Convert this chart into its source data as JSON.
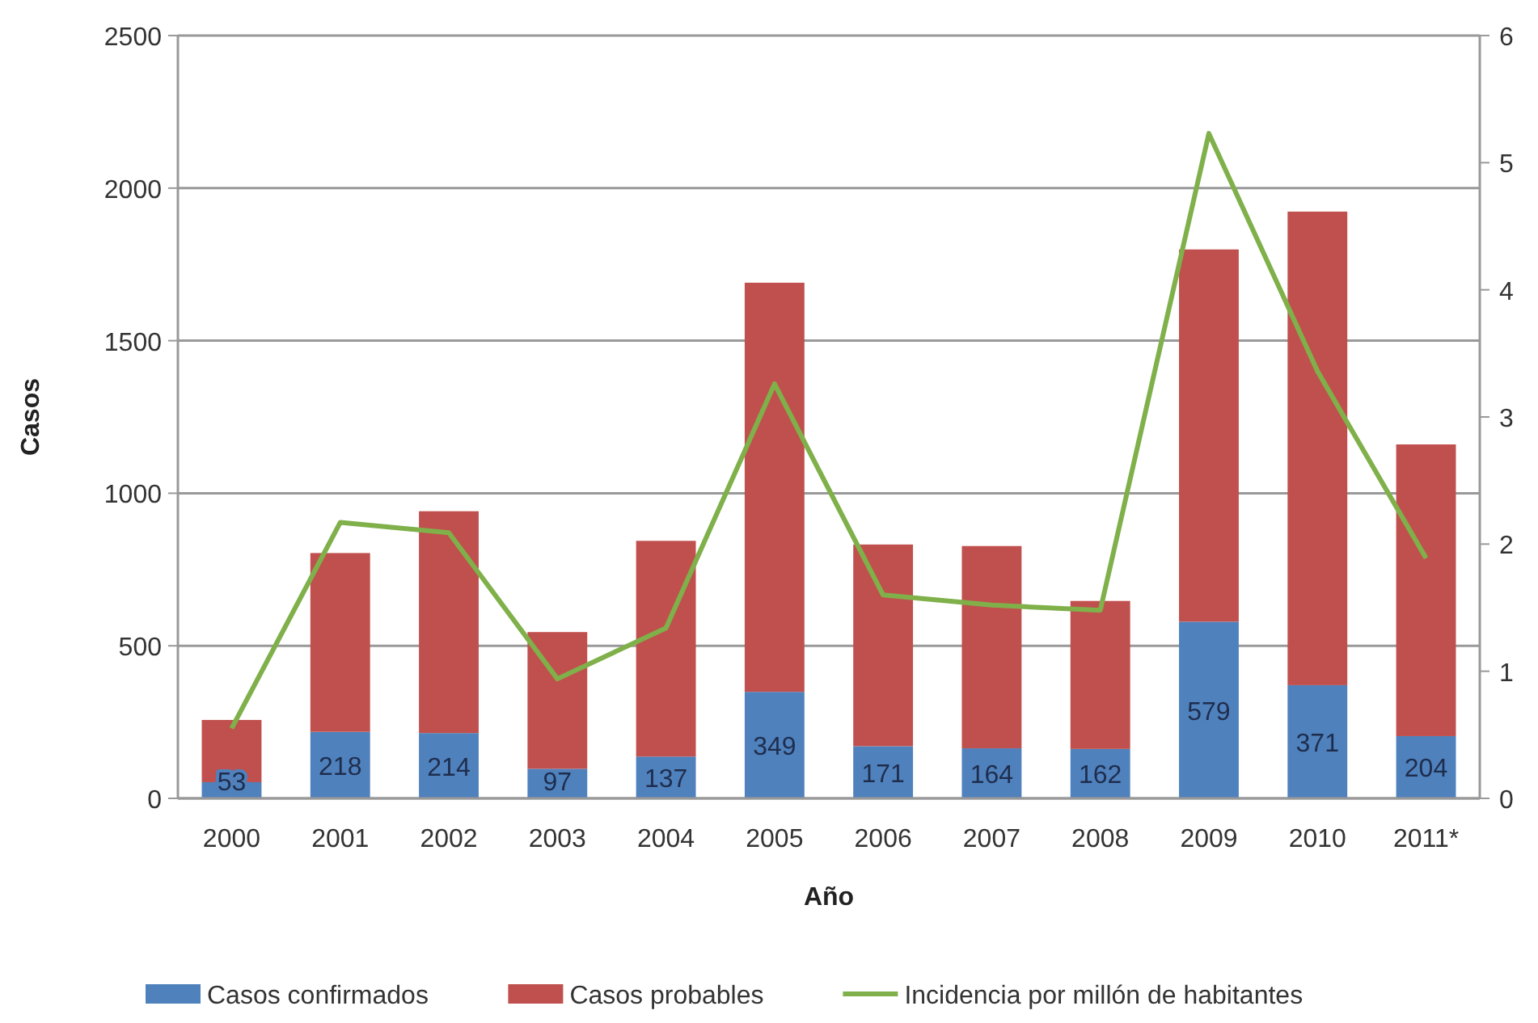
{
  "chart_data": {
    "type": "bar",
    "stacked": true,
    "xlabel": "Año",
    "ylabel": "Casos",
    "categories": [
      "2000",
      "2001",
      "2002",
      "2003",
      "2004",
      "2005",
      "2006",
      "2007",
      "2008",
      "2009",
      "2010",
      "2011*"
    ],
    "series": [
      {
        "name": "Casos confirmados",
        "color": "#4f81bd",
        "values": [
          53,
          218,
          214,
          97,
          137,
          349,
          171,
          164,
          162,
          579,
          371,
          204
        ],
        "value_labels": [
          "53",
          "218",
          "214",
          "97",
          "137",
          "349",
          "171",
          "164",
          "162",
          "579",
          "371",
          "204"
        ]
      },
      {
        "name": "Casos probables",
        "color": "#c0504d",
        "values": [
          204,
          586,
          727,
          448,
          707,
          1341,
          661,
          663,
          485,
          1220,
          1552,
          956
        ]
      },
      {
        "name": "Incidencia por millón de habitantes",
        "type": "line",
        "axis": "y2",
        "color": "#7fb04a",
        "values": [
          0.55,
          2.17,
          2.09,
          0.94,
          1.34,
          3.26,
          1.6,
          1.52,
          1.48,
          5.23,
          3.36,
          1.89
        ]
      }
    ],
    "ylim": [
      0,
      2500
    ],
    "yticks": [
      0,
      500,
      1000,
      1500,
      2000,
      2500
    ],
    "y2lim": [
      0,
      6
    ],
    "y2ticks": [
      0,
      1,
      2,
      3,
      4,
      5,
      6
    ],
    "grid": "y",
    "legend": "bottom",
    "marker": "none",
    "line_style": "solid"
  }
}
